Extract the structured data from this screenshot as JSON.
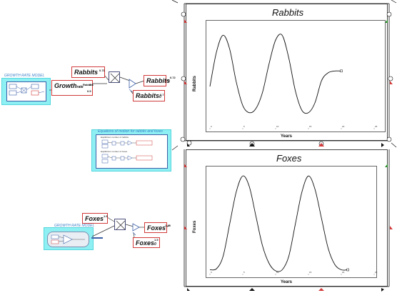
{
  "left_groups": {
    "growth_model_title": "GROWTH RATE MODEL",
    "equations_title": "Equations of motion for rabbits and foxes",
    "growth_model2_title": "GROWTH RATE MODEL",
    "equation1_label": "Equilibrium number of rabbits",
    "equation2_label": "Equilibrium number of foxes"
  },
  "nodes": {
    "rabbits_top": {
      "name": "Rabbits",
      "value": "0.71"
    },
    "growth_rate": {
      "name": "Growth",
      "sub": "rate",
      "sup1": "Rabbits",
      "sup2": "0.3",
      "sup3": "0.5"
    },
    "rabbits_out": {
      "name": "Rabbits",
      "value": "0.72"
    },
    "rabbits_0": {
      "name": "Rabbits",
      "sub": "0",
      "value": "0.7"
    },
    "foxes_top": {
      "name": "Foxes",
      "value": "1.5"
    },
    "foxes_out": {
      "name": "Foxes",
      "value": "1.45"
    },
    "foxes_0": {
      "name": "Foxes",
      "sub": "0",
      "value": "1.5"
    }
  },
  "chart_data": [
    {
      "type": "line",
      "title": "Rabbits",
      "xlabel": "Years",
      "ylabel": "Rabbits",
      "x": [
        0,
        1,
        2,
        3,
        4,
        5,
        6,
        7,
        8,
        9,
        10,
        11,
        12,
        13,
        14,
        15,
        16,
        17,
        18,
        19,
        20
      ],
      "series": [
        {
          "values": [
            0.72,
            1.3,
            1.58,
            1.35,
            0.8,
            0.4,
            0.28,
            0.35,
            0.62,
            1.1,
            1.5,
            1.58,
            1.2,
            0.65,
            0.32,
            0.28,
            0.45,
            0.82,
            0.95,
            0.98,
            0.98
          ]
        }
      ],
      "xlim": [
        0,
        25
      ],
      "ylim": [
        0,
        1.8
      ],
      "xticks": [
        "0",
        "5",
        "10",
        "15",
        "20",
        "25"
      ]
    },
    {
      "type": "line",
      "title": "Foxes",
      "xlabel": "Years",
      "ylabel": "Foxes",
      "x": [
        0,
        1,
        2,
        3,
        4,
        5,
        6,
        7,
        8,
        9,
        10,
        11,
        12,
        13,
        14,
        15,
        16,
        17,
        18,
        19,
        20,
        21
      ],
      "series": [
        {
          "values": [
            0.1,
            0.12,
            0.35,
            0.95,
            1.55,
            1.85,
            1.65,
            1.1,
            0.55,
            0.22,
            0.08,
            0.1,
            0.35,
            0.95,
            1.55,
            1.85,
            1.6,
            1.05,
            0.5,
            0.2,
            0.1,
            0.1
          ]
        }
      ],
      "xlim": [
        0,
        25
      ],
      "ylim": [
        0,
        2
      ],
      "xticks": [
        "0",
        "5",
        "10",
        "15",
        "20",
        "25"
      ]
    }
  ]
}
